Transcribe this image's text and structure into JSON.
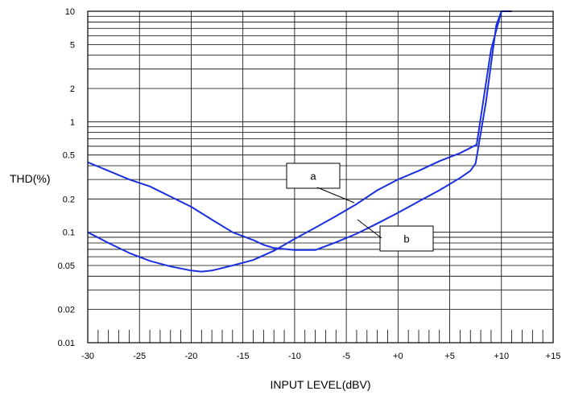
{
  "chart_data": {
    "type": "line",
    "xlabel": "INPUT LEVEL(dBV)",
    "ylabel": "THD(%)",
    "xlim": [
      -30,
      15
    ],
    "ylim": [
      0.01,
      10
    ],
    "yscale": "log",
    "grid": true,
    "x_tick_values": [
      -30,
      -25,
      -20,
      -15,
      -10,
      -5,
      0,
      5,
      10,
      15
    ],
    "x_tick_labels": [
      "-30",
      "-25",
      "-20",
      "-15",
      "-10",
      "-5",
      "+0",
      "+5",
      "+10",
      "+15"
    ],
    "y_tick_values": [
      0.01,
      0.02,
      0.05,
      0.1,
      0.2,
      0.5,
      1,
      2,
      5,
      10
    ],
    "y_tick_labels": [
      "0.01",
      "0.02",
      "0.05",
      "0.1",
      "0.2",
      "0.5",
      "1",
      "2",
      "5",
      "10"
    ],
    "line_color": "#1a2fe0",
    "series": [
      {
        "name": "a",
        "x": [
          -30,
          -28,
          -26,
          -24,
          -22,
          -20,
          -18,
          -16,
          -14,
          -13,
          -12,
          -10,
          -8,
          -6,
          -4,
          -2,
          0,
          2,
          4,
          6,
          7,
          7.5,
          8.5,
          9.5,
          10,
          11
        ],
        "y": [
          0.43,
          0.36,
          0.3,
          0.26,
          0.21,
          0.17,
          0.13,
          0.1,
          0.085,
          0.077,
          0.072,
          0.069,
          0.069,
          0.081,
          0.097,
          0.12,
          0.15,
          0.19,
          0.24,
          0.31,
          0.36,
          0.42,
          1.5,
          7.5,
          10,
          10
        ]
      },
      {
        "name": "b",
        "x": [
          -30,
          -28,
          -26,
          -24,
          -22,
          -20,
          -19,
          -18,
          -16,
          -14,
          -12,
          -10,
          -8,
          -6,
          -4,
          -2,
          0,
          2,
          4,
          6,
          7,
          7.6,
          9,
          10,
          10.7
        ],
        "y": [
          0.1,
          0.08,
          0.065,
          0.055,
          0.049,
          0.045,
          0.044,
          0.045,
          0.05,
          0.056,
          0.068,
          0.087,
          0.11,
          0.14,
          0.18,
          0.24,
          0.3,
          0.36,
          0.44,
          0.52,
          0.58,
          0.62,
          4.5,
          10,
          10
        ]
      }
    ],
    "annotations": [
      "a",
      "b"
    ]
  }
}
